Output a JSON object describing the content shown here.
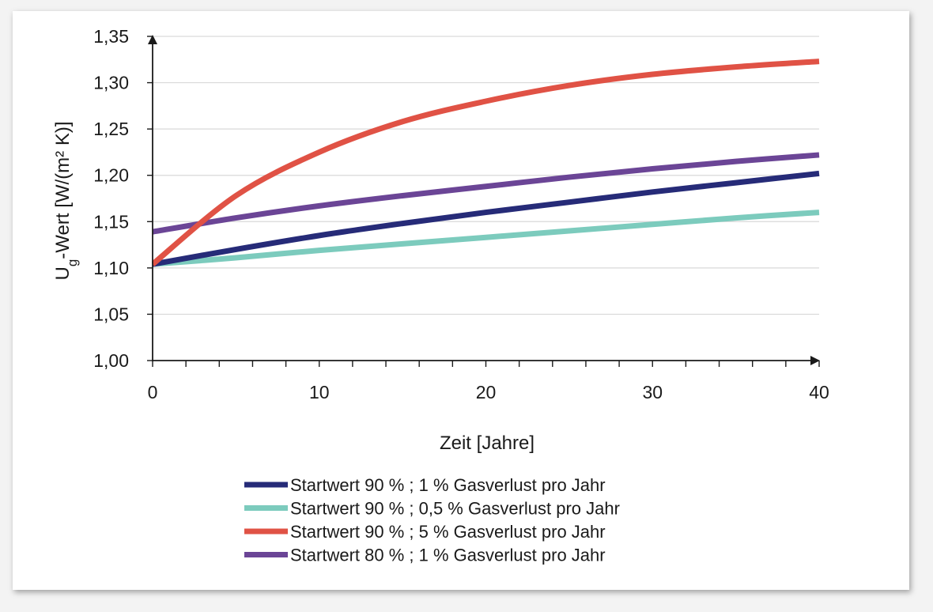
{
  "chart_data": {
    "type": "line",
    "xlabel": "Zeit [Jahre]",
    "ylabel": {
      "main": "U",
      "subscript": "g",
      "rest": "-Wert [W/(m² K)]"
    },
    "xlim": [
      0,
      40
    ],
    "ylim": [
      1.0,
      1.35
    ],
    "x_ticks": [
      "0",
      "10",
      "20",
      "30",
      "40"
    ],
    "y_ticks": [
      "1,00",
      "1,05",
      "1,10",
      "1,15",
      "1,20",
      "1,25",
      "1,30",
      "1,35"
    ],
    "grid": "horizontal",
    "legend_position": "bottom",
    "x": [
      0,
      5,
      10,
      15,
      20,
      25,
      30,
      35,
      40
    ],
    "series": [
      {
        "name": "Startwert 90 % ; 1 % Gasverlust pro Jahr",
        "color": "#262b78",
        "values": [
          1.104,
          1.12,
          1.135,
          1.148,
          1.16,
          1.171,
          1.182,
          1.192,
          1.202
        ]
      },
      {
        "name": "Startwert 90 % ; 0,5 % Gasverlust pro Jahr",
        "color": "#7ccbbd",
        "values": [
          1.104,
          1.111,
          1.119,
          1.126,
          1.133,
          1.14,
          1.147,
          1.154,
          1.16
        ]
      },
      {
        "name": "Startwert 90 % ; 5 % Gasverlust pro Jahr",
        "color": "#e05245",
        "values": [
          1.104,
          1.178,
          1.225,
          1.258,
          1.28,
          1.297,
          1.309,
          1.317,
          1.323
        ]
      },
      {
        "name": "Startwert 80 % ; 1 % Gasverlust pro Jahr",
        "color": "#6b4596",
        "values": [
          1.139,
          1.154,
          1.167,
          1.178,
          1.188,
          1.198,
          1.207,
          1.215,
          1.222
        ]
      }
    ]
  }
}
